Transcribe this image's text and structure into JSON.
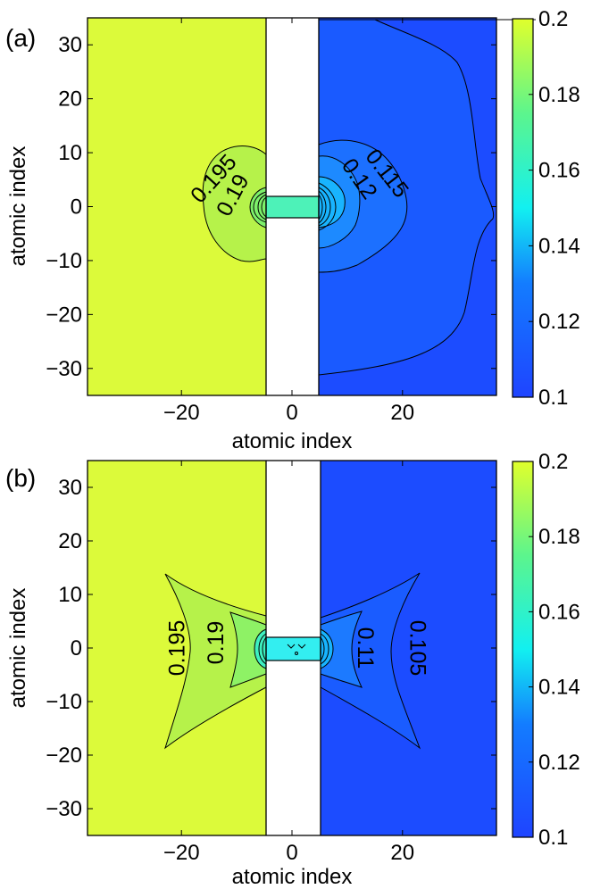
{
  "chart_data": [
    {
      "type": "heatmap",
      "panel_label": "(a)",
      "xlabel": "atomic index",
      "ylabel": "atomic index",
      "xlim": [
        -37,
        37
      ],
      "ylim": [
        -35,
        35
      ],
      "xticks": [
        -20,
        0,
        20
      ],
      "yticks": [
        30,
        20,
        10,
        0,
        -10,
        -20,
        -30
      ],
      "x_tick_labels": [
        "−20",
        "0",
        "20"
      ],
      "y_tick_labels": [
        "30",
        "20",
        "10",
        "0",
        "−10",
        "−20",
        "−30"
      ],
      "colorbar": {
        "range": [
          0.1,
          0.2
        ],
        "ticks": [
          0.2,
          0.18,
          0.16,
          0.14,
          0.12,
          0.1
        ],
        "tick_labels": [
          "0.2",
          "0.18",
          "0.16",
          "0.14",
          "0.12",
          "0.1"
        ]
      },
      "regions": [
        {
          "name": "left-lead",
          "x_range": [
            -37,
            -5
          ],
          "value": 0.2
        },
        {
          "name": "gap",
          "x_range": [
            -5,
            5
          ],
          "value": null
        },
        {
          "name": "right-lead",
          "x_range": [
            5,
            37
          ],
          "value": 0.1
        },
        {
          "name": "bridge",
          "x_range": [
            -5,
            5
          ],
          "y_range": [
            -2,
            2
          ],
          "value": 0.155
        }
      ],
      "contour_labels": [
        {
          "text": "0.195",
          "x": -14,
          "y": 5,
          "rotation": -48
        },
        {
          "text": "0.19",
          "x": -10.5,
          "y": 2,
          "rotation": -62
        },
        {
          "text": "0.115",
          "x": 17,
          "y": 6,
          "rotation": 52
        },
        {
          "text": "0.12",
          "x": 12,
          "y": 5,
          "rotation": 55
        }
      ]
    },
    {
      "type": "heatmap",
      "panel_label": "(b)",
      "xlabel": "atomic index",
      "ylabel": "atomic index",
      "xlim": [
        -37,
        37
      ],
      "ylim": [
        -35,
        35
      ],
      "xticks": [
        -20,
        0,
        20
      ],
      "yticks": [
        30,
        20,
        10,
        0,
        -10,
        -20,
        -30
      ],
      "x_tick_labels": [
        "−20",
        "0",
        "20"
      ],
      "y_tick_labels": [
        "30",
        "20",
        "10",
        "0",
        "−10",
        "−20",
        "−30"
      ],
      "colorbar": {
        "range": [
          0.1,
          0.2
        ],
        "ticks": [
          0.2,
          0.18,
          0.16,
          0.14,
          0.12,
          0.1
        ],
        "tick_labels": [
          "0.2",
          "0.18",
          "0.16",
          "0.14",
          "0.12",
          "0.1"
        ]
      },
      "regions": [
        {
          "name": "left-lead",
          "x_range": [
            -37,
            -5
          ],
          "value": 0.2
        },
        {
          "name": "gap",
          "x_range": [
            -5,
            5
          ],
          "value": null
        },
        {
          "name": "right-lead",
          "x_range": [
            5,
            37
          ],
          "value": 0.1
        },
        {
          "name": "bridge",
          "x_range": [
            -5,
            5
          ],
          "y_range": [
            -2,
            2
          ],
          "value": 0.15
        }
      ],
      "contour_labels": [
        {
          "text": "0.195",
          "x": -20.5,
          "y": 0,
          "rotation": -90
        },
        {
          "text": "0.19",
          "x": -13.5,
          "y": 1,
          "rotation": -90
        },
        {
          "text": "0.11",
          "x": 13,
          "y": 0,
          "rotation": 90
        },
        {
          "text": "0.105",
          "x": 22.5,
          "y": 0,
          "rotation": 90
        }
      ]
    }
  ]
}
